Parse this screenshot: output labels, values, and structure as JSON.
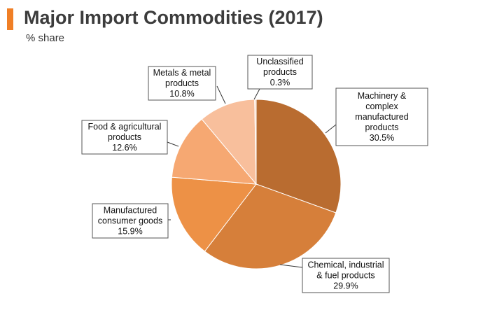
{
  "header": {
    "title": "Major Import Commodities (2017)",
    "subtitle": "% share",
    "accent_color": "#f07f26"
  },
  "chart_data": {
    "type": "pie",
    "title": "Major Import Commodities (2017)",
    "subtitle": "% share",
    "unit": "%",
    "slices": [
      {
        "name": "Machinery & complex manufactured products",
        "lines": [
          "Machinery &",
          "complex",
          "manufactured",
          "products"
        ],
        "value": 30.5,
        "value_label": "30.5%",
        "color": "#b96c30"
      },
      {
        "name": "Chemical, industrial & fuel products",
        "lines": [
          "Chemical, industrial",
          "& fuel products"
        ],
        "value": 29.9,
        "value_label": "29.9%",
        "color": "#d67f3a"
      },
      {
        "name": "Manufactured consumer goods",
        "lines": [
          "Manufactured",
          "consumer goods"
        ],
        "value": 15.9,
        "value_label": "15.9%",
        "color": "#ed9146"
      },
      {
        "name": "Food & agricultural products",
        "lines": [
          "Food & agricultural",
          "products"
        ],
        "value": 12.6,
        "value_label": "12.6%",
        "color": "#f6a872"
      },
      {
        "name": "Metals & metal products",
        "lines": [
          "Metals & metal",
          "products"
        ],
        "value": 10.8,
        "value_label": "10.8%",
        "color": "#f8bf9c"
      },
      {
        "name": "Unclassified products",
        "lines": [
          "Unclassified",
          "products"
        ],
        "value": 0.3,
        "value_label": "0.3%",
        "color": "#fbdac6"
      }
    ],
    "legend": "callouts"
  }
}
